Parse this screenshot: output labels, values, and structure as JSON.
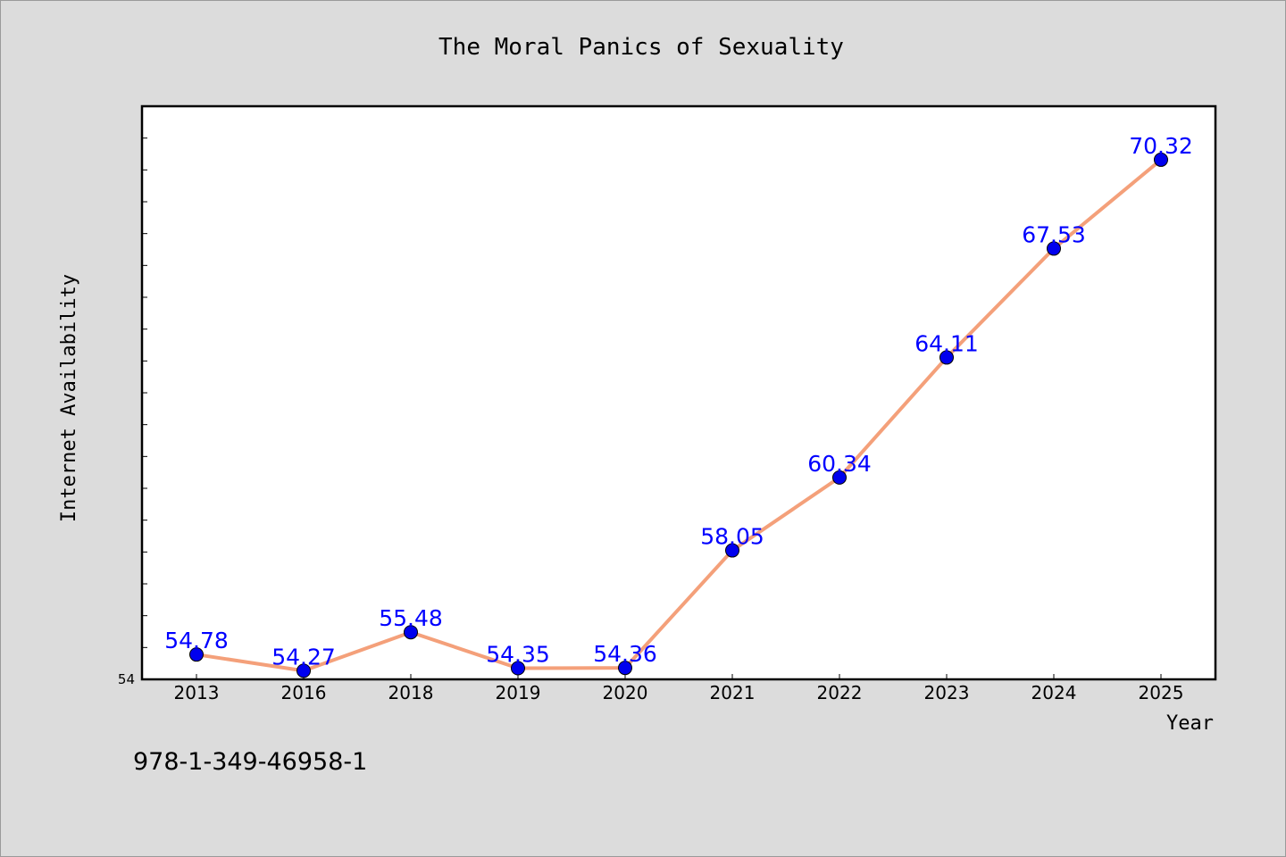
{
  "chart_data": {
    "type": "line",
    "title": "The Moral Panics of Sexuality",
    "xlabel": "Year",
    "ylabel": "Internet Availability",
    "categories": [
      "2013",
      "2016",
      "2018",
      "2019",
      "2020",
      "2021",
      "2022",
      "2023",
      "2024",
      "2025"
    ],
    "series": [
      {
        "values": [
          54.78,
          54.27,
          55.48,
          54.35,
          54.36,
          58.05,
          60.34,
          64.11,
          67.53,
          70.32
        ],
        "labels": [
          "54.78",
          "54.27",
          "55.48",
          "54.35",
          "54.36",
          "58.05",
          "60.34",
          "64.11",
          "67.53",
          "70.32"
        ]
      }
    ],
    "ylim": [
      54,
      72
    ],
    "y_tick_labels": [
      "54"
    ],
    "grid": false,
    "legend": "none",
    "colors": {
      "line": "#f4a07a",
      "marker": "#0000ee",
      "data_label": "#0000ff",
      "plot_background": "#ffffff",
      "page_background": "#dcdcdc"
    }
  },
  "footer": {
    "isbn": "978-1-349-46958-1"
  }
}
